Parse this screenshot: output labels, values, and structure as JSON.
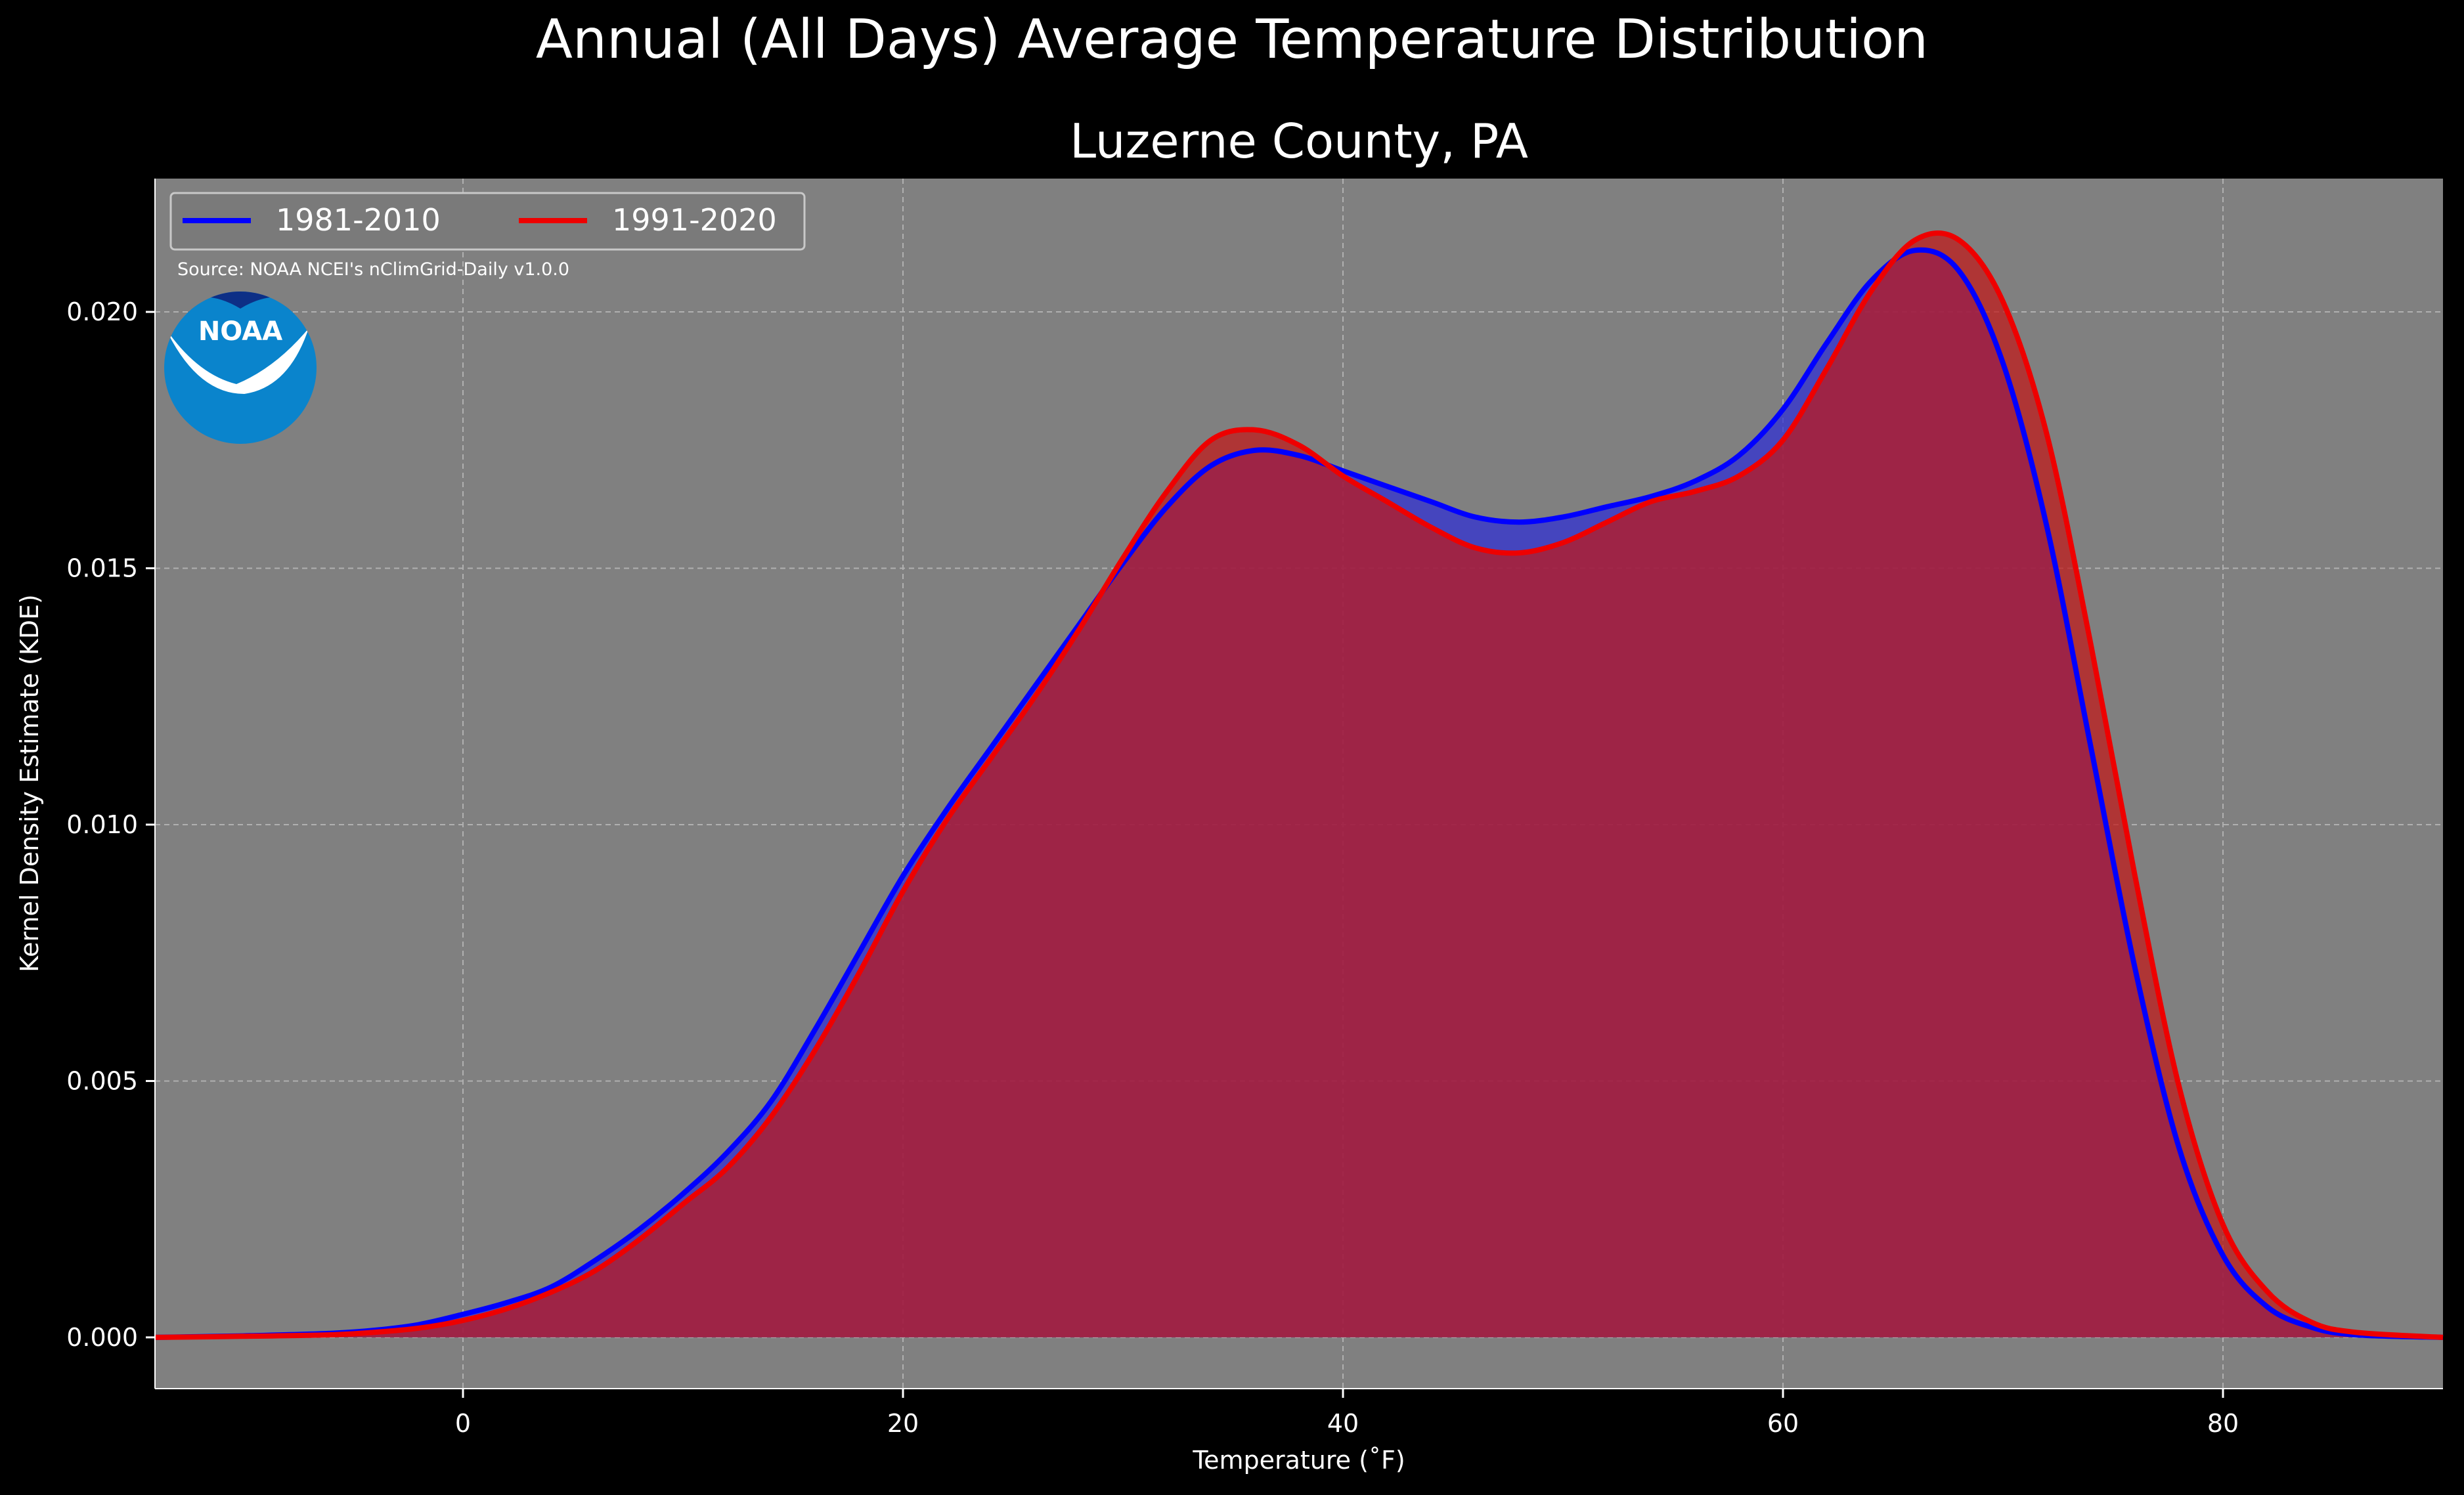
{
  "chart_data": {
    "type": "area",
    "suptitle": "Annual (All Days) Average Temperature Distribution",
    "title": "Luzerne County, PA",
    "xlabel": "Temperature (˚F)",
    "ylabel": "Kernel Density Estimate (KDE)",
    "xlim": [
      -14,
      90
    ],
    "ylim": [
      -0.001,
      0.0226
    ],
    "xticks": [
      0,
      20,
      40,
      60,
      80
    ],
    "xtick_labels": [
      "0",
      "20",
      "40",
      "60",
      "80"
    ],
    "yticks": [
      0.0,
      0.005,
      0.01,
      0.015,
      0.02
    ],
    "ytick_labels": [
      "0.000",
      "0.005",
      "0.010",
      "0.015",
      "0.020"
    ],
    "grid": true,
    "legend_position": "top-left",
    "source_note": "Source: NOAA NCEI's nClimGrid-Daily v1.0.0",
    "logo_text": "NOAA",
    "colors": {
      "background": "#000000",
      "plot_background": "#808080",
      "text": "#ffffff",
      "grid": "#b0b0b0"
    },
    "series": [
      {
        "name": "1981-2010",
        "line_color": "#0000ff",
        "fill_color": "#2e2ed6",
        "points": [
          [
            -14,
            0.0
          ],
          [
            -10,
            3e-05
          ],
          [
            -6,
            8e-05
          ],
          [
            -4,
            0.00014
          ],
          [
            -2,
            0.00025
          ],
          [
            0,
            0.00045
          ],
          [
            2,
            0.00068
          ],
          [
            4,
            0.00098
          ],
          [
            6,
            0.0015
          ],
          [
            8,
            0.0021
          ],
          [
            10,
            0.0028
          ],
          [
            12,
            0.0036
          ],
          [
            14,
            0.0046
          ],
          [
            16,
            0.006
          ],
          [
            18,
            0.0075
          ],
          [
            20,
            0.009
          ],
          [
            22,
            0.0103
          ],
          [
            24,
            0.0115
          ],
          [
            26,
            0.0127
          ],
          [
            28,
            0.0139
          ],
          [
            30,
            0.0151
          ],
          [
            32,
            0.0162
          ],
          [
            34,
            0.017
          ],
          [
            36,
            0.0173
          ],
          [
            38,
            0.0172
          ],
          [
            40,
            0.0169
          ],
          [
            42,
            0.0166
          ],
          [
            44,
            0.0163
          ],
          [
            46,
            0.016
          ],
          [
            48,
            0.0159
          ],
          [
            50,
            0.016
          ],
          [
            52,
            0.0162
          ],
          [
            54,
            0.0164
          ],
          [
            56,
            0.0167
          ],
          [
            58,
            0.0172
          ],
          [
            60,
            0.0181
          ],
          [
            62,
            0.0194
          ],
          [
            64,
            0.0206
          ],
          [
            66,
            0.0212
          ],
          [
            68,
            0.0208
          ],
          [
            70,
            0.019
          ],
          [
            72,
            0.0158
          ],
          [
            74,
            0.0115
          ],
          [
            76,
            0.0072
          ],
          [
            78,
            0.0037
          ],
          [
            80,
            0.0016
          ],
          [
            82,
            0.0006
          ],
          [
            84,
            0.0002
          ],
          [
            86,
            5e-05
          ],
          [
            90,
            0.0
          ]
        ]
      },
      {
        "name": "1991-2020",
        "line_color": "#ee0000",
        "fill_color": "#c01818",
        "points": [
          [
            -14,
            0.0
          ],
          [
            -10,
            2e-05
          ],
          [
            -6,
            5e-05
          ],
          [
            -4,
            0.0001
          ],
          [
            -2,
            0.00018
          ],
          [
            0,
            0.00033
          ],
          [
            2,
            0.00056
          ],
          [
            4,
            0.00088
          ],
          [
            6,
            0.0013
          ],
          [
            8,
            0.0019
          ],
          [
            10,
            0.0026
          ],
          [
            12,
            0.0033
          ],
          [
            14,
            0.0043
          ],
          [
            16,
            0.0056
          ],
          [
            18,
            0.0071
          ],
          [
            20,
            0.0087
          ],
          [
            22,
            0.0101
          ],
          [
            24,
            0.0113
          ],
          [
            26,
            0.0125
          ],
          [
            28,
            0.0138
          ],
          [
            30,
            0.0152
          ],
          [
            32,
            0.0165
          ],
          [
            34,
            0.0175
          ],
          [
            36,
            0.0177
          ],
          [
            38,
            0.0174
          ],
          [
            40,
            0.0168
          ],
          [
            42,
            0.0163
          ],
          [
            44,
            0.0158
          ],
          [
            46,
            0.0154
          ],
          [
            48,
            0.0153
          ],
          [
            50,
            0.0155
          ],
          [
            52,
            0.0159
          ],
          [
            54,
            0.0163
          ],
          [
            56,
            0.0165
          ],
          [
            58,
            0.0168
          ],
          [
            60,
            0.0175
          ],
          [
            62,
            0.0189
          ],
          [
            64,
            0.0204
          ],
          [
            66,
            0.0214
          ],
          [
            68,
            0.0214
          ],
          [
            70,
            0.0202
          ],
          [
            72,
            0.0176
          ],
          [
            74,
            0.0135
          ],
          [
            76,
            0.009
          ],
          [
            78,
            0.0049
          ],
          [
            80,
            0.0022
          ],
          [
            82,
            0.0009
          ],
          [
            84,
            0.0003
          ],
          [
            86,
            0.0001
          ],
          [
            90,
            0.0
          ]
        ]
      }
    ]
  }
}
